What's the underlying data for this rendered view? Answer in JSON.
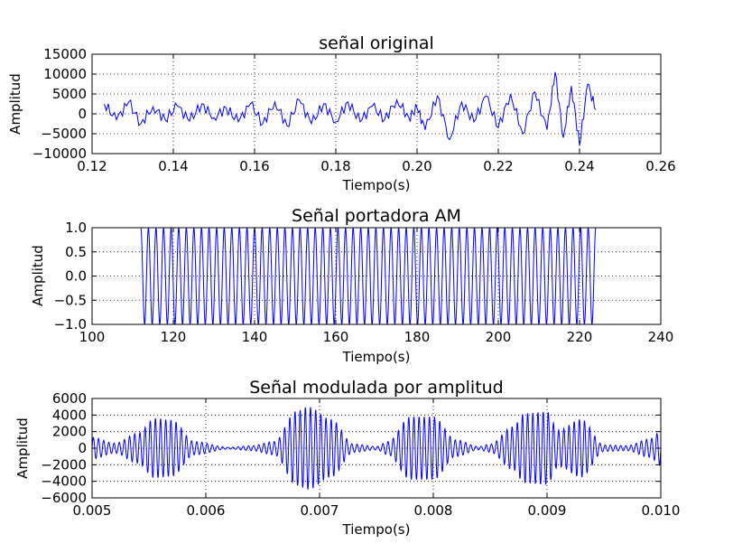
{
  "colors": {
    "line": "#0000ff",
    "grid": "#000000",
    "background": "#ffffff"
  },
  "chart_data": [
    {
      "type": "line",
      "title": "señal original",
      "xlabel": "Tiempo(s)",
      "ylabel": "Amplitud",
      "xlim": [
        0.12,
        0.26
      ],
      "ylim": [
        -10000,
        15000
      ],
      "xticks": [
        "0.12",
        "0.14",
        "0.16",
        "0.18",
        "0.20",
        "0.22",
        "0.24",
        "0.26"
      ],
      "yticks": [
        "−10000",
        "−5000",
        "0",
        "5000",
        "10000",
        "15000"
      ],
      "grid": true,
      "series": [
        {
          "x": [
            0.123,
            0.126,
            0.129,
            0.132,
            0.135,
            0.138,
            0.141,
            0.144,
            0.147,
            0.15,
            0.153,
            0.156,
            0.159,
            0.162,
            0.165,
            0.168,
            0.171,
            0.174,
            0.177,
            0.18,
            0.183,
            0.186,
            0.189,
            0.192,
            0.195,
            0.198,
            0.2,
            0.202,
            0.205,
            0.208,
            0.211,
            0.214,
            0.217,
            0.22,
            0.223,
            0.226,
            0.229,
            0.232,
            0.234,
            0.236,
            0.238,
            0.24,
            0.242,
            0.244
          ],
          "y": [
            2500,
            -1500,
            3000,
            -2500,
            1800,
            -1500,
            2000,
            -1800,
            2500,
            -1000,
            1500,
            -2000,
            2500,
            -2500,
            3000,
            -3000,
            3500,
            -2500,
            2500,
            -2000,
            3000,
            -2000,
            2000,
            -1500,
            3500,
            -1000,
            1500,
            -4000,
            4500,
            -6500,
            3000,
            -2000,
            4500,
            -3500,
            5000,
            -5000,
            5500,
            -4000,
            10500,
            -6000,
            7000,
            -8000,
            7500,
            1000
          ]
        }
      ]
    },
    {
      "type": "line",
      "title": "Señal portadora AM",
      "xlabel": "Tiempo(s)",
      "ylabel": "Amplitud",
      "xlim": [
        100,
        240
      ],
      "ylim": [
        -1.0,
        1.0
      ],
      "xticks": [
        "100",
        "120",
        "140",
        "160",
        "180",
        "200",
        "220",
        "240"
      ],
      "yticks": [
        "−1.0",
        "−0.5",
        "0.0",
        "0.5",
        "1.0"
      ],
      "grid": true,
      "series": [
        {
          "x_start": 112,
          "x_end": 224,
          "amplitude": 1.0,
          "cycles": 60
        }
      ]
    },
    {
      "type": "line",
      "title": "Señal modulada por amplitud",
      "xlabel": "Tiempo(s)",
      "ylabel": "Amplitud",
      "xlim": [
        0.005,
        0.01
      ],
      "ylim": [
        -6000,
        6000
      ],
      "xticks": [
        "0.005",
        "0.006",
        "0.007",
        "0.008",
        "0.009",
        "0.010"
      ],
      "yticks": [
        "−6000",
        "−4000",
        "−2000",
        "0",
        "2000",
        "4000",
        "6000"
      ],
      "grid": true,
      "series": [
        {
          "carrier_cycles_per_unit": 22000,
          "envelope": {
            "x": [
              0.005,
              0.0052,
              0.0054,
              0.00555,
              0.0057,
              0.0059,
              0.0062,
              0.0064,
              0.0066,
              0.0068,
              0.0069,
              0.0071,
              0.0073,
              0.0075,
              0.0076,
              0.0078,
              0.008,
              0.0082,
              0.0084,
              0.0085,
              0.0087,
              0.0088,
              0.009,
              0.0091,
              0.0093,
              0.0095,
              0.0097,
              0.0099,
              0.01
            ],
            "y": [
              1300,
              600,
              1800,
              3600,
              3400,
              800,
              100,
              300,
              800,
              4500,
              5000,
              3500,
              500,
              200,
              800,
              3800,
              3800,
              1000,
              200,
              500,
              2600,
              4200,
              4400,
              2200,
              3500,
              400,
              300,
              1100,
              2000
            ]
          }
        }
      ]
    }
  ]
}
